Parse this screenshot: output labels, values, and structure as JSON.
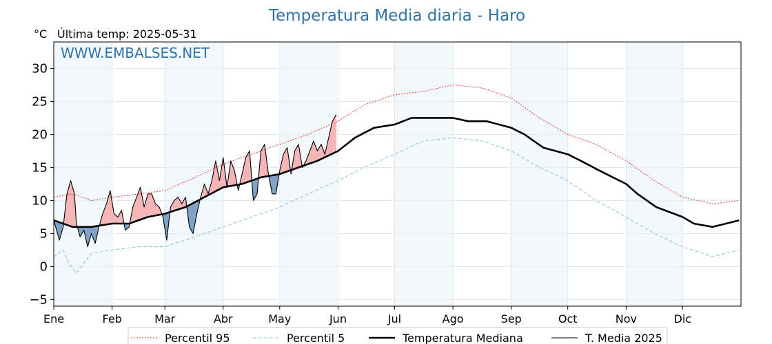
{
  "chart_data": {
    "type": "line",
    "title": "Temperatura Media diaria - Haro",
    "unit_label": "°C",
    "last_reading": "Última temp: 2025-05-31",
    "watermark": "WWW.EMBALSES.NET",
    "ylim": [
      -6,
      34
    ],
    "yticks": [
      -5,
      0,
      5,
      10,
      15,
      20,
      25,
      30
    ],
    "xlim": [
      0,
      365
    ],
    "months": [
      {
        "label": "Ene",
        "day": 0
      },
      {
        "label": "Feb",
        "day": 31
      },
      {
        "label": "Mar",
        "day": 59
      },
      {
        "label": "Abr",
        "day": 90
      },
      {
        "label": "May",
        "day": 120
      },
      {
        "label": "Jun",
        "day": 151
      },
      {
        "label": "Jul",
        "day": 181
      },
      {
        "label": "Ago",
        "day": 212
      },
      {
        "label": "Sep",
        "day": 243
      },
      {
        "label": "Oct",
        "day": 273
      },
      {
        "label": "Nov",
        "day": 304
      },
      {
        "label": "Dic",
        "day": 334
      }
    ],
    "grid": true,
    "legend_position": "bottom",
    "series": [
      {
        "name": "Percentil 95",
        "color": "#e8281e",
        "style": "dotted",
        "x": [
          0,
          10,
          20,
          31,
          45,
          59,
          75,
          90,
          105,
          120,
          135,
          151,
          165,
          181,
          196,
          212,
          228,
          243,
          258,
          273,
          288,
          304,
          319,
          334,
          350,
          364
        ],
        "y": [
          10.5,
          11.0,
          10.0,
          10.5,
          11.0,
          11.5,
          13.5,
          15.5,
          17.0,
          18.5,
          20.0,
          22.0,
          24.5,
          26.0,
          26.5,
          27.5,
          27.0,
          25.5,
          22.5,
          20.0,
          18.5,
          16.0,
          13.0,
          10.5,
          9.5,
          10.0
        ]
      },
      {
        "name": "Percentil 5",
        "color": "#8ec8dc",
        "style": "dashed",
        "x": [
          0,
          5,
          8,
          12,
          20,
          31,
          45,
          59,
          75,
          90,
          105,
          120,
          135,
          151,
          165,
          181,
          196,
          212,
          228,
          243,
          258,
          273,
          288,
          304,
          319,
          334,
          350,
          364
        ],
        "y": [
          1.5,
          2.5,
          0.5,
          -1.0,
          2.0,
          2.5,
          3.0,
          3.0,
          4.5,
          6.0,
          7.5,
          9.0,
          11.0,
          13.0,
          15.0,
          17.0,
          19.0,
          19.5,
          19.0,
          17.5,
          15.0,
          13.0,
          10.0,
          7.5,
          5.0,
          3.0,
          1.5,
          2.5
        ]
      },
      {
        "name": "Temperatura Mediana",
        "color": "#000000",
        "style": "solid-thick",
        "x": [
          0,
          10,
          20,
          31,
          40,
          50,
          59,
          70,
          80,
          90,
          100,
          110,
          120,
          130,
          140,
          151,
          160,
          170,
          181,
          190,
          200,
          212,
          220,
          230,
          243,
          250,
          260,
          273,
          280,
          290,
          304,
          310,
          320,
          334,
          340,
          350,
          364
        ],
        "y": [
          7.0,
          6.0,
          6.0,
          6.5,
          6.5,
          7.5,
          8.0,
          9.0,
          10.5,
          12.0,
          12.5,
          13.5,
          14.0,
          15.0,
          16.0,
          17.5,
          19.5,
          21.0,
          21.5,
          22.5,
          22.5,
          22.5,
          22.0,
          22.0,
          21.0,
          20.0,
          18.0,
          17.0,
          16.0,
          14.5,
          12.5,
          11.0,
          9.0,
          7.5,
          6.5,
          6.0,
          7.0
        ]
      },
      {
        "name": "T. Media 2025",
        "color": "#000000",
        "style": "solid",
        "x": [
          0,
          3,
          5,
          7,
          9,
          11,
          12,
          14,
          16,
          18,
          20,
          22,
          24,
          26,
          28,
          30,
          32,
          34,
          36,
          38,
          40,
          42,
          44,
          46,
          48,
          50,
          52,
          54,
          56,
          58,
          60,
          62,
          64,
          66,
          68,
          70,
          72,
          74,
          76,
          78,
          80,
          82,
          84,
          86,
          88,
          90,
          92,
          94,
          96,
          98,
          100,
          102,
          104,
          106,
          108,
          110,
          112,
          114,
          116,
          118,
          120,
          122,
          124,
          126,
          128,
          130,
          132,
          134,
          136,
          138,
          140,
          142,
          144,
          146,
          148,
          150
        ],
        "y": [
          7.0,
          4.0,
          6.0,
          11.0,
          13.0,
          11.0,
          6.5,
          4.5,
          5.5,
          3.0,
          5.0,
          3.5,
          6.0,
          8.0,
          9.5,
          11.5,
          8.0,
          7.5,
          8.5,
          5.5,
          6.0,
          9.0,
          10.5,
          12.0,
          9.0,
          11.0,
          11.0,
          9.5,
          9.0,
          7.5,
          4.0,
          9.0,
          10.0,
          10.5,
          9.5,
          10.5,
          6.0,
          5.0,
          8.0,
          10.5,
          12.5,
          11.0,
          13.0,
          16.0,
          13.0,
          16.5,
          12.0,
          16.0,
          14.5,
          11.5,
          14.0,
          16.5,
          17.5,
          10.0,
          11.0,
          17.5,
          18.5,
          14.0,
          11.0,
          11.0,
          14.5,
          17.0,
          18.0,
          14.0,
          17.5,
          18.5,
          15.0,
          16.0,
          17.5,
          19.0,
          17.5,
          18.5,
          17.0,
          19.5,
          22.0,
          23.0
        ]
      }
    ]
  }
}
